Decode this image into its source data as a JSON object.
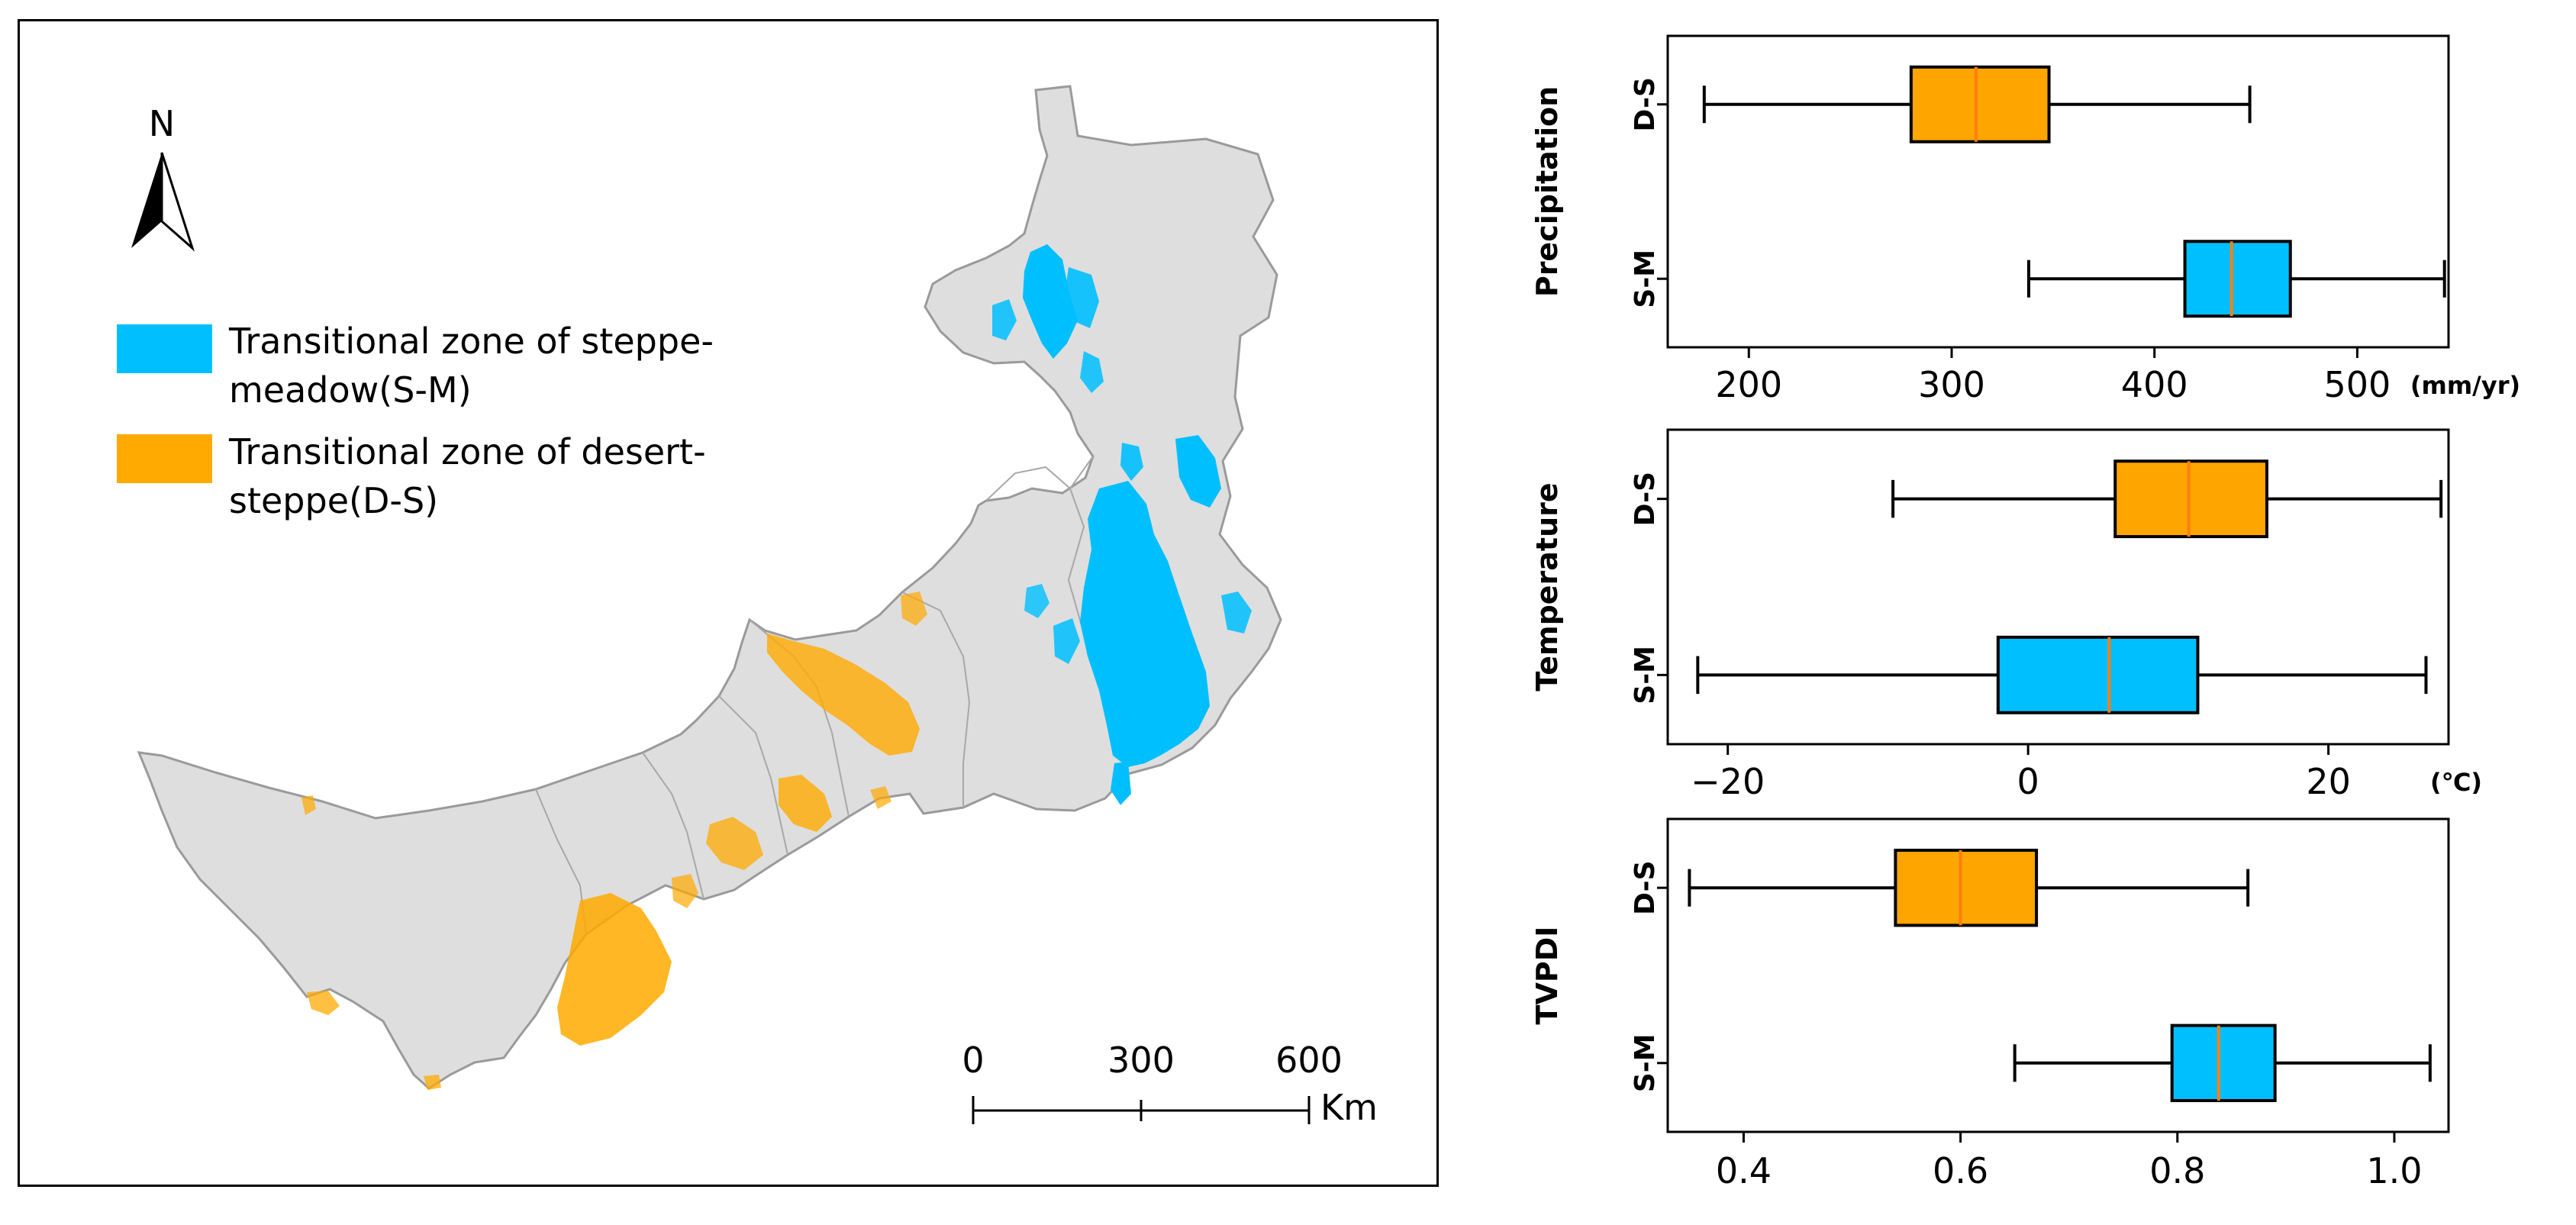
{
  "map": {
    "north_label": "N",
    "legend": [
      {
        "line1": "Transitional zone of steppe-",
        "line2": "meadow(S-M)",
        "color": "#00BFFF"
      },
      {
        "line1": "Transitional zone of desert-",
        "line2": "steppe(D-S)",
        "color": "#FFAA00"
      }
    ],
    "scale": {
      "ticks": [
        "0",
        "300",
        "600"
      ],
      "unit": "Km"
    },
    "land_color": "#DEDEDE"
  },
  "chart_data": [
    {
      "type": "box",
      "ylabel": "Precipitation",
      "unit": "(mm/yr)",
      "xlim": [
        160,
        545
      ],
      "xticks": [
        200,
        300,
        400,
        500
      ],
      "categories": [
        "D-S",
        "S-M"
      ],
      "boxes": [
        {
          "category": "D-S",
          "whisker_low": 178,
          "q1": 280,
          "median": 312,
          "q3": 348,
          "whisker_high": 447,
          "color": "#FFA500"
        },
        {
          "category": "S-M",
          "whisker_low": 338,
          "q1": 415,
          "median": 438,
          "q3": 467,
          "whisker_high": 543,
          "color": "#00BFFF"
        }
      ]
    },
    {
      "type": "box",
      "ylabel": "Temperature",
      "unit": "(℃)",
      "xlim": [
        -24,
        28
      ],
      "xticks": [
        -20,
        0,
        20
      ],
      "categories": [
        "D-S",
        "S-M"
      ],
      "boxes": [
        {
          "category": "D-S",
          "whisker_low": -9,
          "q1": 5.8,
          "median": 10.7,
          "q3": 15.9,
          "whisker_high": 27.5,
          "color": "#FFA500"
        },
        {
          "category": "S-M",
          "whisker_low": -22,
          "q1": -2,
          "median": 5.4,
          "q3": 11.3,
          "whisker_high": 26.5,
          "color": "#00BFFF"
        }
      ]
    },
    {
      "type": "box",
      "ylabel": "TVPDI",
      "unit": "",
      "xlim": [
        0.33,
        1.05
      ],
      "xticks": [
        "0.4",
        "0.6",
        "0.8",
        "1.0"
      ],
      "categories": [
        "D-S",
        "S-M"
      ],
      "boxes": [
        {
          "category": "D-S",
          "whisker_low": 0.35,
          "q1": 0.54,
          "median": 0.6,
          "q3": 0.67,
          "whisker_high": 0.865,
          "color": "#FFA500"
        },
        {
          "category": "S-M",
          "whisker_low": 0.65,
          "q1": 0.795,
          "median": 0.838,
          "q3": 0.89,
          "whisker_high": 1.033,
          "color": "#00BFFF"
        }
      ]
    }
  ]
}
